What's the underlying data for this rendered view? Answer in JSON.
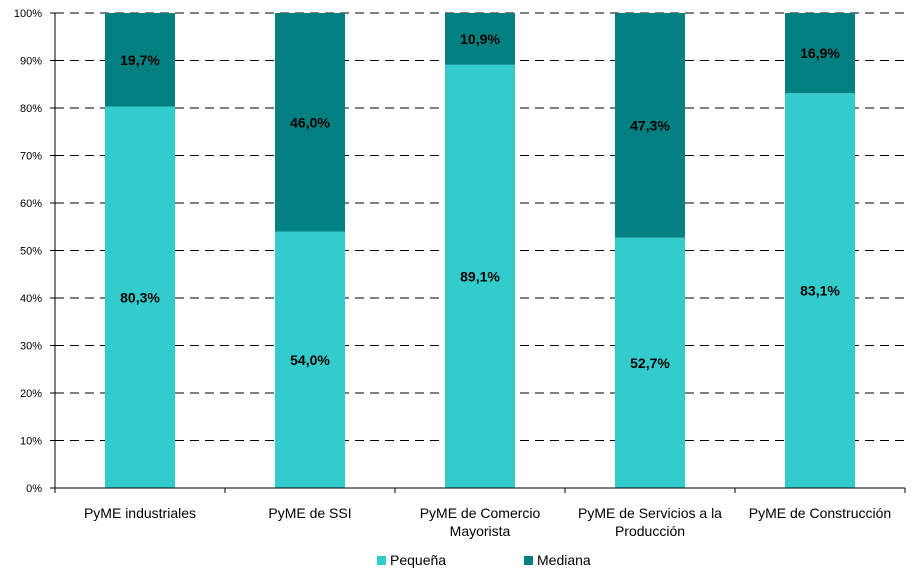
{
  "chart_data": {
    "type": "bar",
    "stacked": true,
    "percent": true,
    "categories": [
      [
        "PyME industriales"
      ],
      [
        "PyME de SSI"
      ],
      [
        "PyME de Comercio",
        "Mayorista"
      ],
      [
        "PyME de Servicios a la",
        "Producción"
      ],
      [
        "PyME de Construcción"
      ]
    ],
    "series": [
      {
        "name": "Pequeña",
        "color": "#33CCCC",
        "values": [
          80.3,
          54.0,
          89.1,
          52.7,
          83.1
        ],
        "labels": [
          "80,3%",
          "54,0%",
          "89,1%",
          "52,7%",
          "83,1%"
        ]
      },
      {
        "name": "Mediana",
        "color": "#008080",
        "values": [
          19.7,
          46.0,
          10.9,
          47.3,
          16.9
        ],
        "labels": [
          "19,7%",
          "46,0%",
          "10,9%",
          "47,3%",
          "16,9%"
        ]
      }
    ],
    "y_ticks": [
      "0%",
      "10%",
      "20%",
      "30%",
      "40%",
      "50%",
      "60%",
      "70%",
      "80%",
      "90%",
      "100%"
    ],
    "ylim": [
      0,
      100
    ],
    "grid": "horizontal dashed",
    "legend_position": "bottom",
    "title": "",
    "xlabel": "",
    "ylabel": ""
  }
}
